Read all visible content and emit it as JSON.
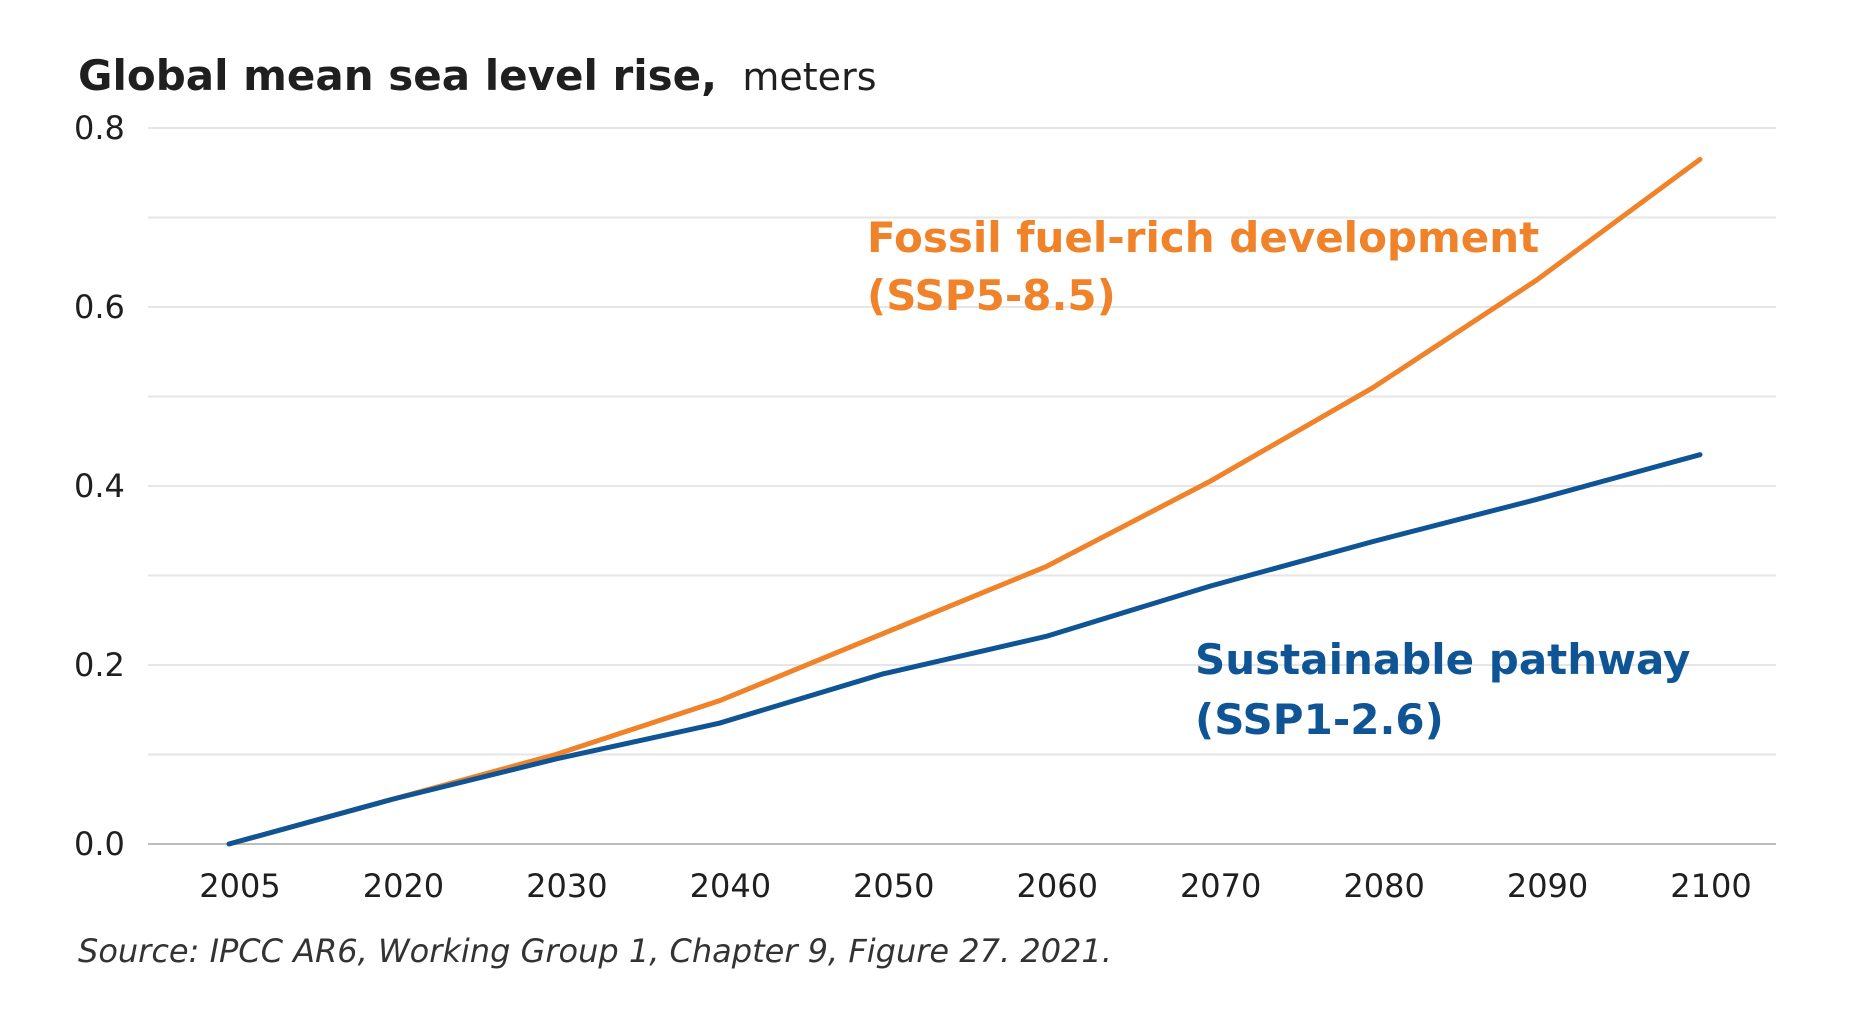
{
  "chart_data": {
    "type": "line",
    "title": "Global mean sea level rise,",
    "unit_label": "meters",
    "source": "Source: IPCC AR6, Working Group 1, Chapter 9, Figure 27. 2021.",
    "x": [
      "2005",
      "2020",
      "2030",
      "2040",
      "2050",
      "2060",
      "2070",
      "2080",
      "2090",
      "2100"
    ],
    "y_ticks": [
      "0.0",
      "0.2",
      "0.4",
      "0.6",
      "0.8"
    ],
    "ylim": [
      0,
      0.8
    ],
    "grid": true,
    "series": [
      {
        "name_lines": [
          "Fossil fuel-rich development",
          "(SSP5-8.5)"
        ],
        "color": "#f0832a",
        "values": [
          0.0,
          0.05,
          0.1,
          0.16,
          0.235,
          0.31,
          0.405,
          0.51,
          0.63,
          0.765
        ]
      },
      {
        "name_lines": [
          "Sustainable pathway",
          "(SSP1-2.6)"
        ],
        "color": "#0f5595",
        "values": [
          0.0,
          0.05,
          0.095,
          0.135,
          0.19,
          0.232,
          0.288,
          0.338,
          0.385,
          0.435
        ]
      }
    ]
  }
}
